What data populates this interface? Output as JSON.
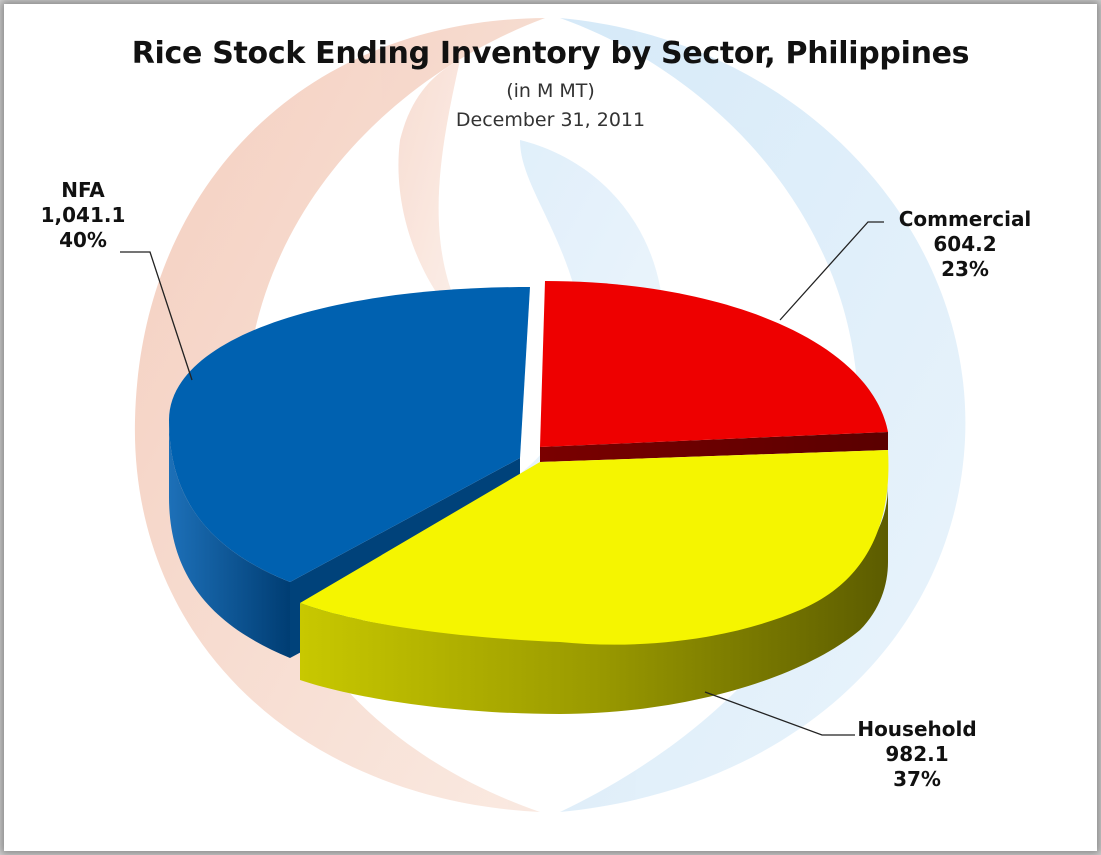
{
  "chart_data": {
    "type": "pie",
    "title": "Rice Stock Ending Inventory by Sector, Philippines",
    "subtitle": "(in M MT)",
    "date": "December 31, 2011",
    "slices": [
      {
        "label": "Commercial",
        "value": 604.2,
        "value_text": "604.2",
        "percent": 23,
        "percent_text": "23%",
        "color": "#ee0000",
        "side_color": "#7a0000"
      },
      {
        "label": "Household",
        "value": 982.1,
        "value_text": "982.1",
        "percent": 37,
        "percent_text": "37%",
        "color": "#f5f500",
        "side_color": "#8a8a00"
      },
      {
        "label": "NFA",
        "value": 1041.1,
        "value_text": "1,041.1",
        "percent": 40,
        "percent_text": "40%",
        "color": "#0061b0",
        "side_color": "#00427a"
      }
    ]
  }
}
